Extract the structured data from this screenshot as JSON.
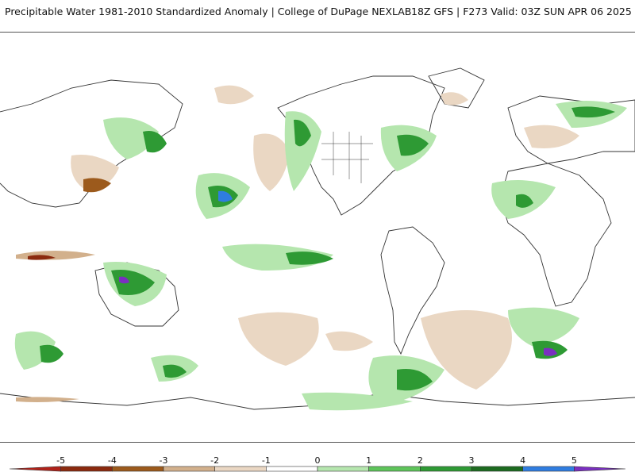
{
  "header": {
    "left": "Precipitable Water 1981-2010 Standardized Anomaly | College of DuPage NEXLAB",
    "right": "18Z GFS | F273 Valid: 03Z SUN APR 06 2025"
  },
  "colors": {
    "neg5": "#b0221a",
    "neg4": "#8b2a0e",
    "neg3": "#9c5a1c",
    "neg2": "#d2b08c",
    "neg1": "#ead7c3",
    "zero": "#ffffff",
    "pos1": "#b5e6ae",
    "pos2": "#5ec45a",
    "pos3": "#2e9a34",
    "pos4": "#1d6b20",
    "pos5": "#2f7de0",
    "pos6": "#7a2fc0",
    "coast": "#333333"
  },
  "legend": {
    "labels": [
      "-5",
      "-4",
      "-3",
      "-2",
      "-1",
      "0",
      "1",
      "2",
      "3",
      "4",
      "5"
    ]
  }
}
